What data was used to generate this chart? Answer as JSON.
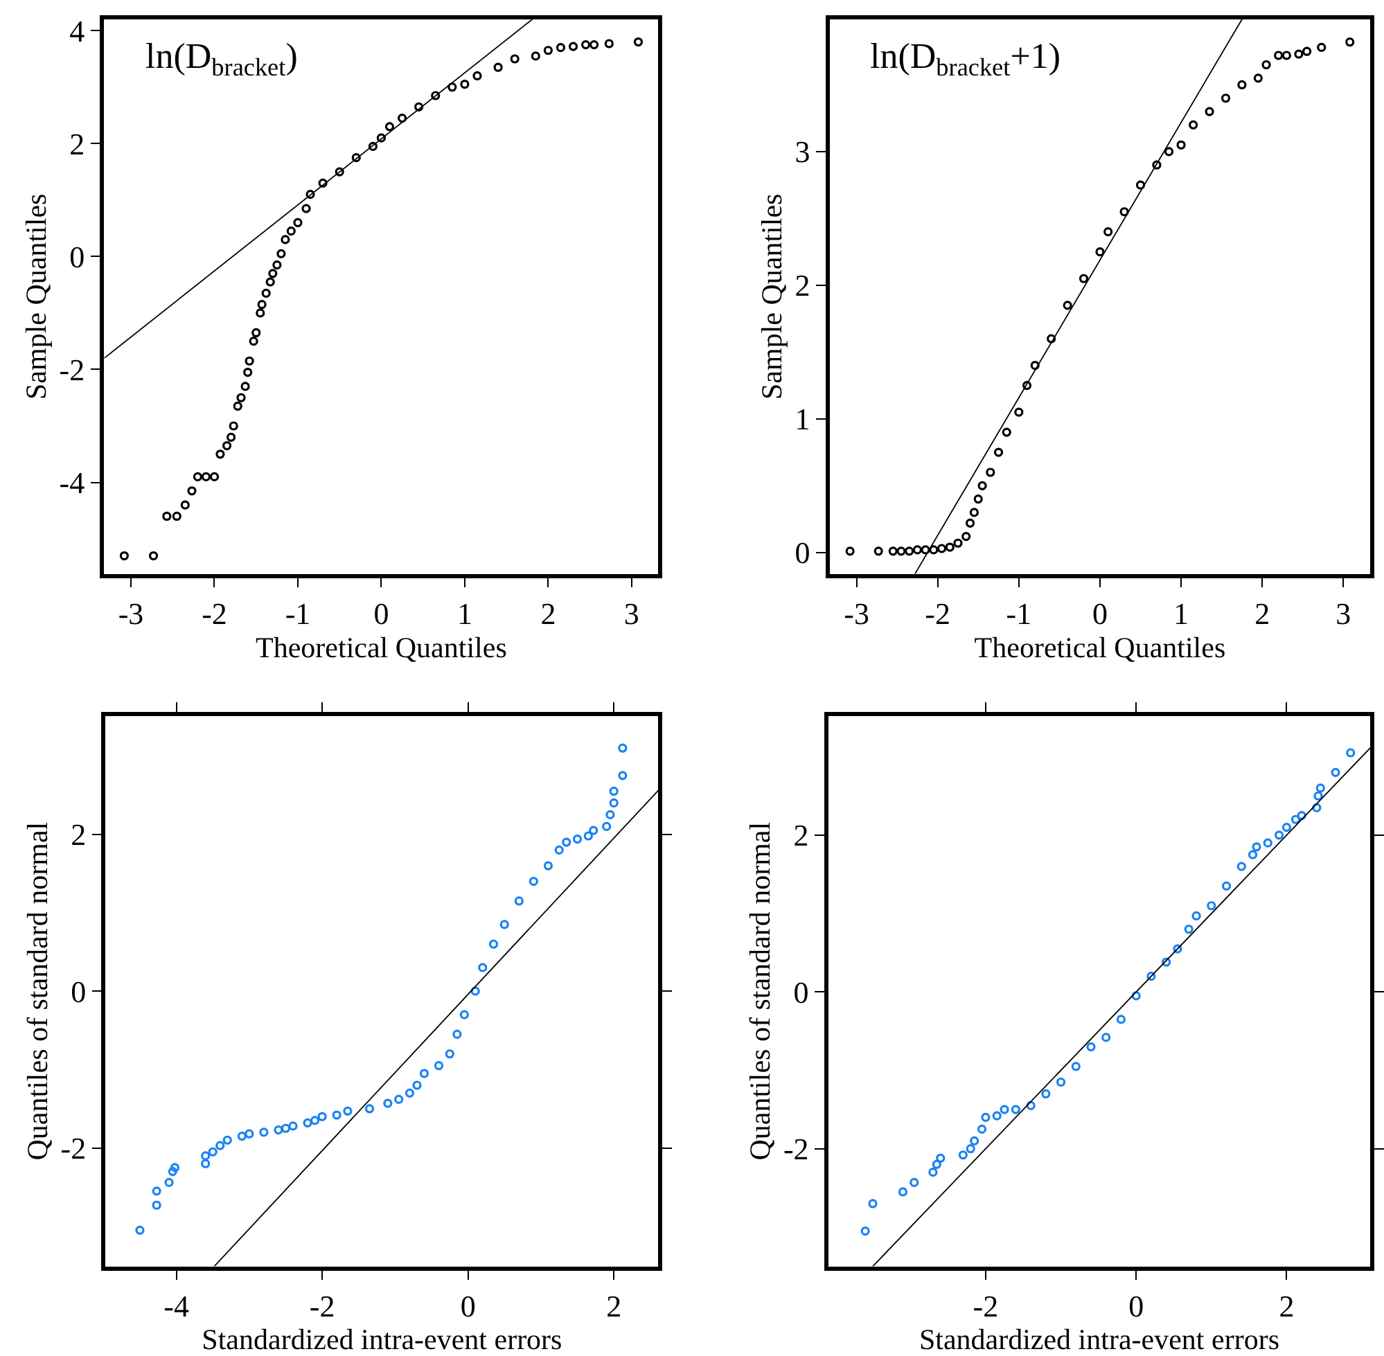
{
  "chart_data": [
    {
      "type": "scatter",
      "xlabel": "Theoretical Quantiles",
      "ylabel": "Sample Quantiles",
      "annotations": [
        "ln(D$_{bracket}$)"
      ],
      "xlim": [
        -3.32,
        3.32
      ],
      "ylim": [
        -5.62,
        4.2
      ],
      "xticks": [
        -3,
        -2,
        -1,
        0,
        1,
        2,
        3
      ],
      "yticks": [
        -4,
        -2,
        0,
        2,
        4
      ],
      "series": [
        {
          "marker": "circle",
          "color": "#000000",
          "x": [
            -3.08,
            -2.73,
            -2.57,
            -2.45,
            -2.35,
            -2.27,
            -2.2,
            -2.1,
            -2.0,
            -1.93,
            -1.85,
            -1.8,
            -1.77,
            -1.72,
            -1.68,
            -1.63,
            -1.6,
            -1.58,
            -1.53,
            -1.5,
            -1.45,
            -1.43,
            -1.38,
            -1.33,
            -1.3,
            -1.25,
            -1.2,
            -1.15,
            -1.08,
            -1.0,
            -0.9,
            -0.85,
            -0.7,
            -0.5,
            -0.3,
            -0.1,
            0.0,
            0.1,
            0.25,
            0.45,
            0.65,
            0.85,
            1.0,
            1.15,
            1.4,
            1.6,
            1.85,
            2.0,
            2.15,
            2.3,
            2.45,
            2.55,
            2.73,
            3.08
          ],
          "values": [
            -5.3,
            -5.3,
            -4.6,
            -4.6,
            -4.4,
            -4.15,
            -3.9,
            -3.9,
            -3.9,
            -3.5,
            -3.35,
            -3.2,
            -3.0,
            -2.65,
            -2.5,
            -2.3,
            -2.05,
            -1.85,
            -1.5,
            -1.35,
            -1.0,
            -0.85,
            -0.65,
            -0.45,
            -0.3,
            -0.15,
            0.05,
            0.3,
            0.45,
            0.6,
            0.85,
            1.1,
            1.3,
            1.5,
            1.75,
            1.95,
            2.1,
            2.3,
            2.45,
            2.65,
            2.85,
            3.0,
            3.05,
            3.2,
            3.35,
            3.5,
            3.55,
            3.65,
            3.7,
            3.72,
            3.75,
            3.75,
            3.77,
            3.8
          ]
        },
        {
          "type": "line",
          "color": "#000000",
          "x": [
            -3.32,
            1.81
          ],
          "values": [
            -1.8,
            4.2
          ]
        }
      ]
    },
    {
      "type": "scatter",
      "xlabel": "Theoretical Quantiles",
      "ylabel": "Sample Quantiles",
      "annotations": [
        "ln(D$_{bracket}$+1)"
      ],
      "xlim": [
        -3.33,
        3.33
      ],
      "ylim": [
        -0.16,
        3.99
      ],
      "xticks": [
        -3,
        -2,
        -1,
        0,
        1,
        2,
        3
      ],
      "yticks": [
        0,
        1,
        2,
        3
      ],
      "series": [
        {
          "marker": "circle",
          "color": "#000000",
          "x": [
            -3.08,
            -2.73,
            -2.55,
            -2.45,
            -2.35,
            -2.25,
            -2.15,
            -2.05,
            -1.95,
            -1.85,
            -1.75,
            -1.65,
            -1.6,
            -1.55,
            -1.5,
            -1.45,
            -1.35,
            -1.25,
            -1.15,
            -1.0,
            -0.9,
            -0.8,
            -0.6,
            -0.4,
            -0.2,
            0.0,
            0.1,
            0.3,
            0.5,
            0.7,
            0.85,
            1.0,
            1.15,
            1.35,
            1.55,
            1.75,
            1.95,
            2.05,
            2.2,
            2.3,
            2.45,
            2.55,
            2.73,
            3.08
          ],
          "values": [
            0.01,
            0.01,
            0.01,
            0.01,
            0.01,
            0.02,
            0.02,
            0.02,
            0.03,
            0.04,
            0.07,
            0.12,
            0.22,
            0.3,
            0.4,
            0.5,
            0.6,
            0.75,
            0.9,
            1.05,
            1.25,
            1.4,
            1.6,
            1.85,
            2.05,
            2.25,
            2.4,
            2.55,
            2.75,
            2.9,
            3.0,
            3.05,
            3.2,
            3.3,
            3.4,
            3.5,
            3.55,
            3.65,
            3.72,
            3.72,
            3.73,
            3.75,
            3.78,
            3.82
          ]
        },
        {
          "type": "line",
          "color": "#000000",
          "x": [
            -2.28,
            1.75
          ],
          "values": [
            -0.16,
            3.99
          ]
        }
      ]
    },
    {
      "type": "scatter",
      "xlabel": "Standardized intra-event errors",
      "ylabel": "Quantiles of standard normal",
      "xlim": [
        -4.97,
        2.61
      ],
      "ylim": [
        -3.51,
        3.51
      ],
      "xticks": [
        -4,
        -2,
        0,
        2
      ],
      "yticks": [
        -2,
        0,
        2
      ],
      "series": [
        {
          "marker": "circle",
          "color": "#1a82f5",
          "x": [
            -4.5,
            -4.27,
            -4.27,
            -4.1,
            -4.05,
            -4.02,
            -3.6,
            -3.6,
            -3.5,
            -3.4,
            -3.3,
            -3.1,
            -3.0,
            -2.8,
            -2.6,
            -2.5,
            -2.4,
            -2.2,
            -2.1,
            -2.0,
            -1.8,
            -1.65,
            -1.35,
            -1.1,
            -0.95,
            -0.8,
            -0.7,
            -0.6,
            -0.4,
            -0.25,
            -0.15,
            -0.05,
            0.1,
            0.2,
            0.35,
            0.5,
            0.7,
            0.9,
            1.1,
            1.25,
            1.35,
            1.5,
            1.65,
            1.72,
            1.9,
            1.95,
            2.0,
            2.0,
            2.12,
            2.12
          ],
          "values": [
            -3.05,
            -2.73,
            -2.55,
            -2.44,
            -2.3,
            -2.25,
            -2.2,
            -2.1,
            -2.05,
            -1.97,
            -1.9,
            -1.85,
            -1.82,
            -1.8,
            -1.77,
            -1.75,
            -1.72,
            -1.68,
            -1.65,
            -1.6,
            -1.58,
            -1.53,
            -1.5,
            -1.43,
            -1.38,
            -1.3,
            -1.2,
            -1.05,
            -0.95,
            -0.8,
            -0.55,
            -0.3,
            0.0,
            0.3,
            0.6,
            0.85,
            1.15,
            1.4,
            1.6,
            1.8,
            1.9,
            1.94,
            1.98,
            2.05,
            2.1,
            2.25,
            2.4,
            2.55,
            2.75,
            3.1
          ]
        },
        {
          "type": "line",
          "color": "#000000",
          "x": [
            -3.48,
            2.61
          ],
          "values": [
            -3.51,
            2.56
          ]
        }
      ]
    },
    {
      "type": "scatter",
      "xlabel": "Standardized intra-event errors",
      "ylabel": "Quantiles of standard normal",
      "xlim": [
        -4.09,
        3.11
      ],
      "ylim": [
        -3.5,
        3.52
      ],
      "xticks": [
        -2,
        0,
        2
      ],
      "yticks": [
        -2,
        0,
        2
      ],
      "series": [
        {
          "marker": "circle",
          "color": "#1a82f5",
          "x": [
            -3.6,
            -3.5,
            -3.1,
            -2.95,
            -2.7,
            -2.65,
            -2.6,
            -2.3,
            -2.2,
            -2.15,
            -2.05,
            -2.0,
            -1.85,
            -1.75,
            -1.6,
            -1.4,
            -1.2,
            -1.0,
            -0.8,
            -0.6,
            -0.4,
            -0.2,
            0.0,
            0.2,
            0.4,
            0.55,
            0.7,
            0.8,
            1.0,
            1.2,
            1.4,
            1.55,
            1.6,
            1.75,
            1.9,
            2.0,
            2.12,
            2.2,
            2.4,
            2.42,
            2.45,
            2.65,
            2.85
          ],
          "values": [
            -3.05,
            -2.7,
            -2.55,
            -2.43,
            -2.3,
            -2.2,
            -2.12,
            -2.08,
            -2.0,
            -1.9,
            -1.75,
            -1.6,
            -1.58,
            -1.5,
            -1.5,
            -1.45,
            -1.3,
            -1.15,
            -0.95,
            -0.7,
            -0.58,
            -0.35,
            -0.05,
            0.2,
            0.38,
            0.55,
            0.8,
            0.97,
            1.1,
            1.35,
            1.6,
            1.75,
            1.85,
            1.9,
            2.0,
            2.1,
            2.2,
            2.25,
            2.35,
            2.5,
            2.6,
            2.8,
            3.05
          ]
        },
        {
          "type": "line",
          "color": "#000000",
          "x": [
            -3.5,
            3.11
          ],
          "values": [
            -3.5,
            3.11
          ]
        }
      ]
    }
  ]
}
